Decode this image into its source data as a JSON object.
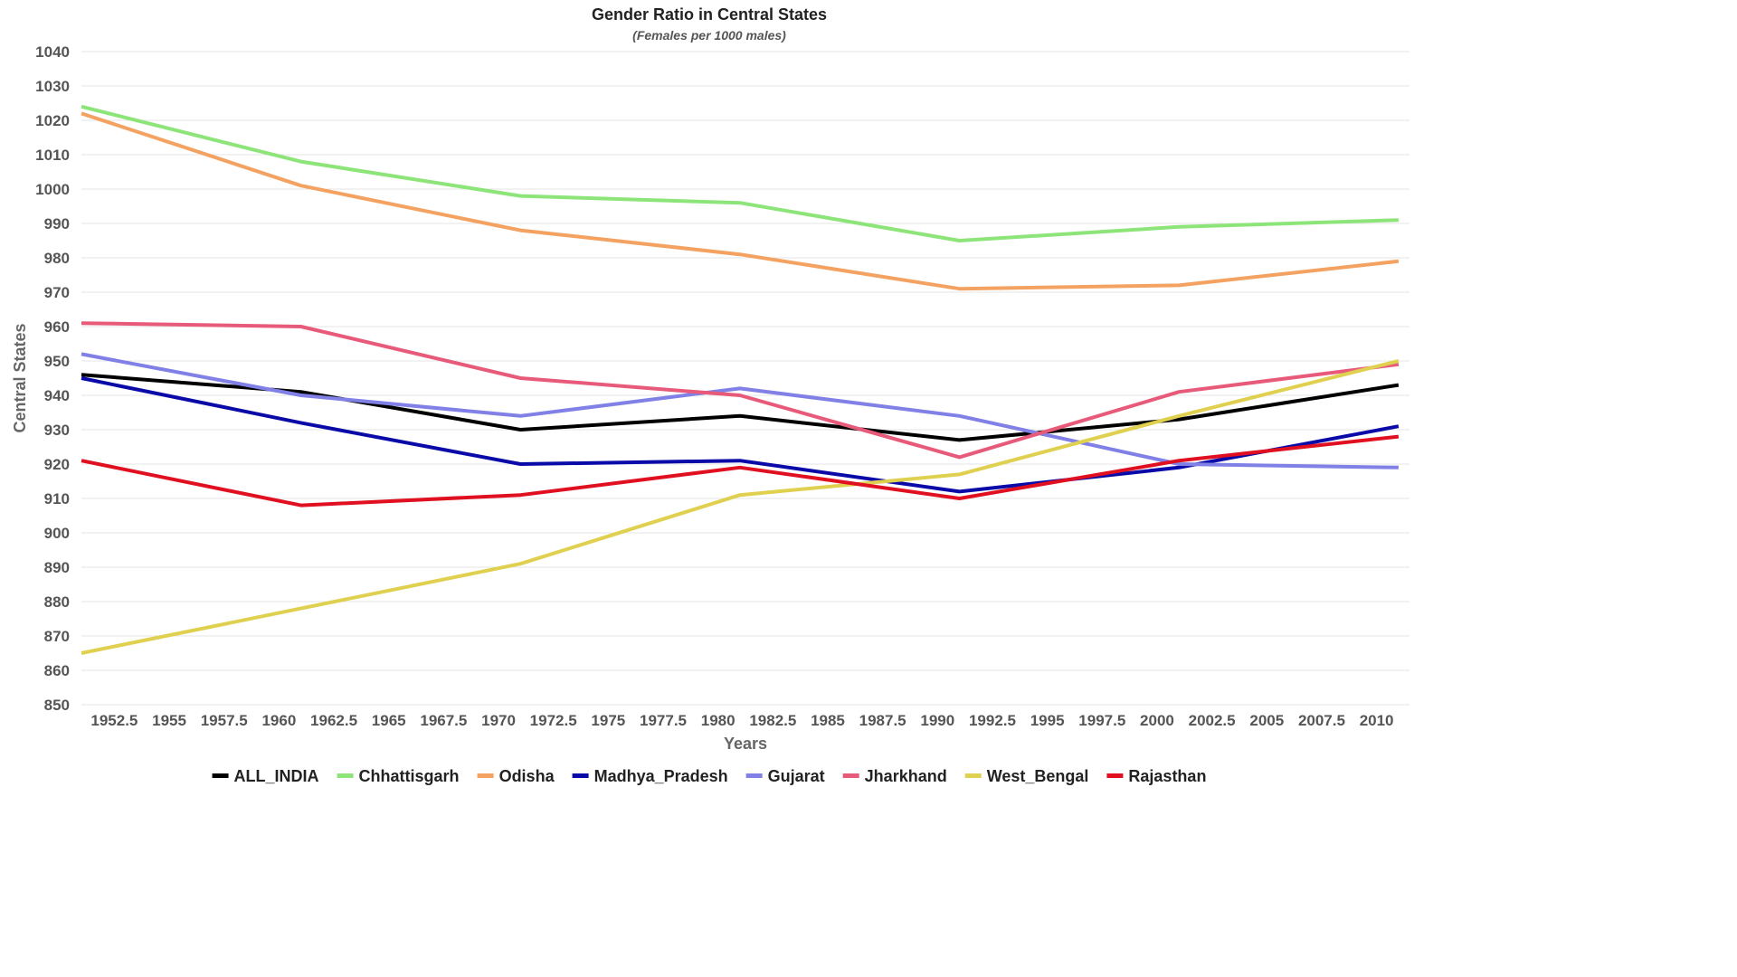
{
  "chart_data": {
    "type": "line",
    "title": "Gender Ratio in Central States",
    "subtitle": "(Females per 1000 males)",
    "xlabel": "Years",
    "ylabel": "Central States",
    "xlim": [
      1951,
      2011.5
    ],
    "ylim": [
      850,
      1040
    ],
    "x_ticks": [
      1952.5,
      1955,
      1957.5,
      1960,
      1962.5,
      1965,
      1967.5,
      1970,
      1972.5,
      1975,
      1977.5,
      1980,
      1982.5,
      1985,
      1987.5,
      1990,
      1992.5,
      1995,
      1997.5,
      2000,
      2002.5,
      2005,
      2007.5,
      2010
    ],
    "y_ticks": [
      850,
      860,
      870,
      880,
      890,
      900,
      910,
      920,
      930,
      940,
      950,
      960,
      970,
      980,
      990,
      1000,
      1010,
      1020,
      1030,
      1040
    ],
    "grid": true,
    "legend_position": "bottom",
    "x": [
      1951,
      1961,
      1971,
      1981,
      1991,
      2001,
      2011
    ],
    "series": [
      {
        "name": "ALL_INDIA",
        "color": "#000000",
        "values": [
          946,
          941,
          930,
          934,
          927,
          933,
          943
        ]
      },
      {
        "name": "Chhattisgarh",
        "color": "#8de57a",
        "values": [
          1024,
          1008,
          998,
          996,
          985,
          989,
          991
        ]
      },
      {
        "name": "Odisha",
        "color": "#f4a261",
        "values": [
          1022,
          1001,
          988,
          981,
          971,
          972,
          979
        ]
      },
      {
        "name": "Madhya_Pradesh",
        "color": "#0a0aa8",
        "values": [
          945,
          932,
          920,
          921,
          912,
          919,
          931
        ]
      },
      {
        "name": "Gujarat",
        "color": "#8080e6",
        "values": [
          952,
          940,
          934,
          942,
          934,
          920,
          919
        ]
      },
      {
        "name": "Jharkhand",
        "color": "#e85a7a",
        "values": [
          961,
          960,
          945,
          940,
          922,
          941,
          949
        ]
      },
      {
        "name": "West_Bengal",
        "color": "#e0d050",
        "values": [
          865,
          878,
          891,
          911,
          917,
          934,
          950
        ]
      },
      {
        "name": "Rajasthan",
        "color": "#e01020",
        "values": [
          921,
          908,
          911,
          919,
          910,
          921,
          928
        ]
      }
    ]
  }
}
